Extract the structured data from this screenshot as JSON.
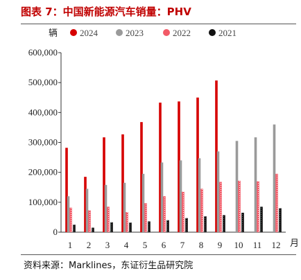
{
  "title": "图表 7：中国新能源汽车销量：PHV",
  "source": "资料来源：Marklines，东证衍生品研究院",
  "colors": {
    "2024": "#d60000",
    "2023": "#9a9a9a",
    "2022": "#f25a67",
    "2021": "#111111"
  },
  "chart_data": {
    "type": "bar",
    "ylabel": "辆",
    "xlabel": "月",
    "ylim": [
      0,
      600000
    ],
    "yticks": [
      0,
      100000,
      200000,
      300000,
      400000,
      500000,
      600000
    ],
    "ytick_labels": [
      "0",
      "100,000",
      "200,000",
      "300,000",
      "400,000",
      "500,000",
      "600,000"
    ],
    "categories": [
      "1",
      "2",
      "3",
      "4",
      "5",
      "6",
      "7",
      "8",
      "9",
      "10",
      "11",
      "12"
    ],
    "legend_position": "top",
    "series": [
      {
        "name": "2024",
        "values": [
          282000,
          185000,
          317000,
          327000,
          368000,
          433000,
          437000,
          450000,
          507000,
          null,
          null,
          null
        ]
      },
      {
        "name": "2023",
        "values": [
          120000,
          145000,
          158000,
          165000,
          195000,
          233000,
          240000,
          247000,
          270000,
          305000,
          317000,
          360000
        ]
      },
      {
        "name": "2022",
        "values": [
          82000,
          73000,
          85000,
          67000,
          97000,
          120000,
          135000,
          145000,
          168000,
          172000,
          170000,
          195000
        ]
      },
      {
        "name": "2021",
        "values": [
          25000,
          15000,
          33000,
          32000,
          36000,
          40000,
          47000,
          53000,
          57000,
          65000,
          85000,
          80000
        ]
      }
    ]
  }
}
